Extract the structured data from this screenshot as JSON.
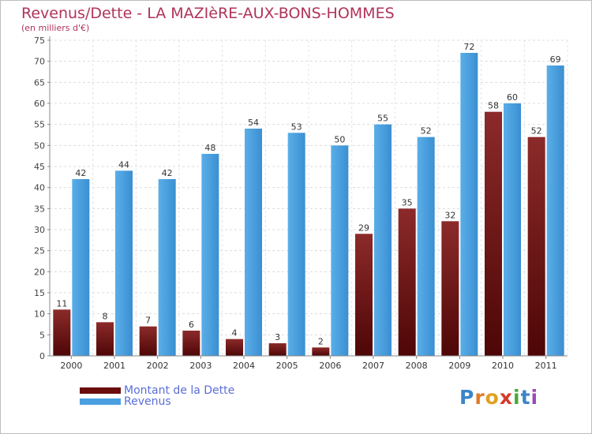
{
  "header": {
    "title": "Revenus/Dette - LA MAZIèRE-AUX-BONS-HOMMES",
    "subtitle": "(en milliers d'€)"
  },
  "chart_data": {
    "type": "bar",
    "categories": [
      "2000",
      "2001",
      "2002",
      "2003",
      "2004",
      "2005",
      "2006",
      "2007",
      "2008",
      "2009",
      "2010",
      "2011"
    ],
    "series": [
      {
        "name": "Montant de la Dette",
        "color": "#7a1a1a",
        "values": [
          11,
          8,
          7,
          6,
          4,
          3,
          2,
          29,
          35,
          32,
          58,
          52
        ]
      },
      {
        "name": "Revenus",
        "color": "#4a9fe0",
        "values": [
          42,
          44,
          42,
          48,
          54,
          53,
          50,
          55,
          52,
          72,
          60,
          69
        ]
      }
    ],
    "ylim": [
      0,
      75
    ],
    "yticks": [
      0,
      5,
      10,
      15,
      20,
      25,
      30,
      35,
      40,
      45,
      50,
      55,
      60,
      65,
      70,
      75
    ],
    "grid": true,
    "legend": "bottom-left"
  },
  "legend": {
    "items": [
      {
        "label": "Montant de la Dette",
        "color": "#7a1a1a"
      },
      {
        "label": "Revenus",
        "color": "#4a9fe0"
      }
    ]
  },
  "logo": {
    "letters": [
      "P",
      "r",
      "o",
      "x",
      "i",
      "t",
      "i"
    ],
    "colors": [
      "#3b86c8",
      "#e07b2a",
      "#e0a020",
      "#d63a2a",
      "#4aa83a",
      "#3b86c8",
      "#9a4ab8"
    ]
  }
}
